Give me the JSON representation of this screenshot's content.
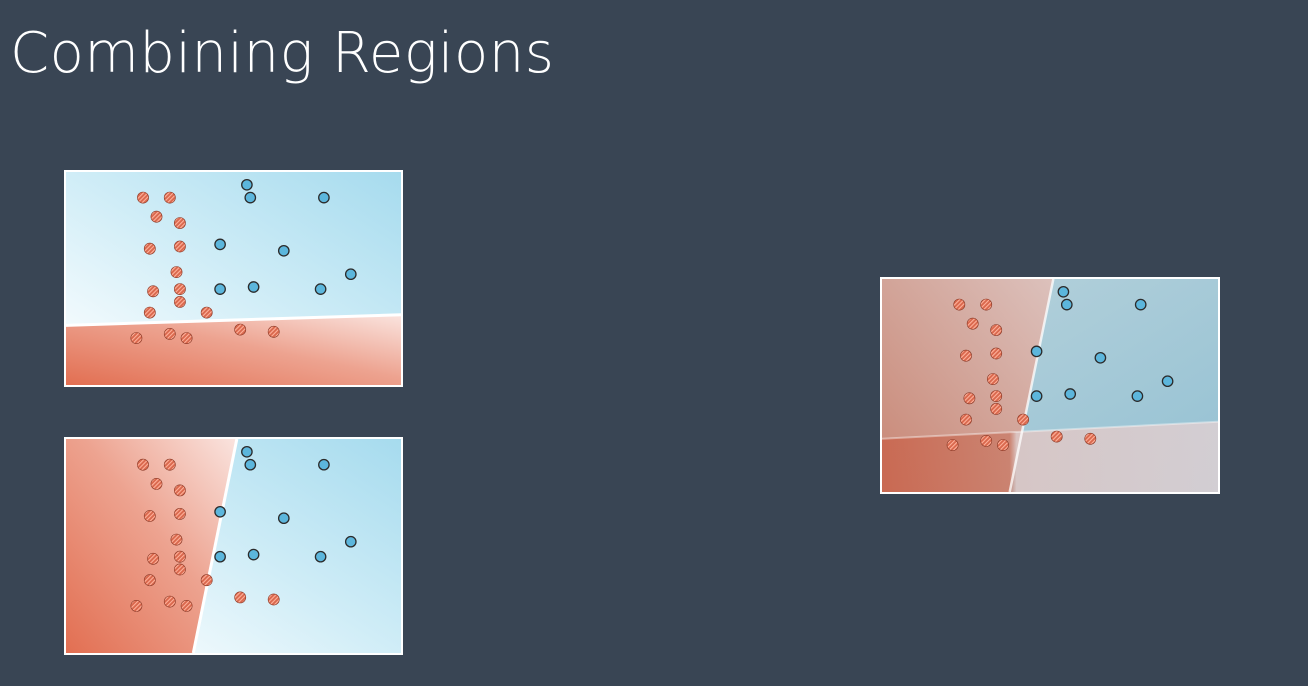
{
  "slide": {
    "title": "Combining Regions"
  },
  "colors": {
    "background": "#394554",
    "title": "#ffffff",
    "red_point": "#d9684d",
    "red_point_stripe": "#ffb19b",
    "blue_point": "#5cb6dc",
    "point_outline": "#2b2b2b",
    "red_region": "#e26f52",
    "blue_region": "#a6dbee",
    "boundary": "#ffffff"
  },
  "points": {
    "red": [
      [
        2.3,
        8.8
      ],
      [
        3.1,
        8.8
      ],
      [
        3.4,
        7.6
      ],
      [
        2.7,
        7.9
      ],
      [
        2.5,
        6.4
      ],
      [
        3.4,
        6.5
      ],
      [
        2.6,
        4.4
      ],
      [
        3.3,
        5.3
      ],
      [
        3.4,
        4.5
      ],
      [
        2.5,
        3.4
      ],
      [
        3.4,
        3.9
      ],
      [
        3.6,
        2.2
      ],
      [
        2.1,
        2.2
      ],
      [
        3.1,
        2.4
      ],
      [
        5.2,
        2.6
      ],
      [
        4.2,
        3.4
      ],
      [
        6.2,
        2.5
      ]
    ],
    "blue": [
      [
        5.4,
        9.4
      ],
      [
        5.5,
        8.8
      ],
      [
        7.7,
        8.8
      ],
      [
        4.6,
        6.6
      ],
      [
        6.5,
        6.3
      ],
      [
        8.5,
        5.2
      ],
      [
        4.6,
        4.5
      ],
      [
        5.6,
        4.6
      ],
      [
        7.6,
        4.5
      ]
    ]
  },
  "panels": [
    {
      "id": "top",
      "description_name": "horizontal-split",
      "boundary_left_y": 2.8,
      "boundary_right_y": 3.3,
      "below_region": "red",
      "above_region": "blue"
    },
    {
      "id": "bottom",
      "description_name": "vertical-split",
      "boundary_bottom_x": 3.8,
      "boundary_top_x": 5.1,
      "left_region": "red",
      "right_region": "blue"
    },
    {
      "id": "result",
      "description_name": "combined",
      "horizontal_boundary_left_y": 2.5,
      "horizontal_boundary_right_y": 3.3,
      "vertical_boundary_bottom_x": 3.8,
      "vertical_boundary_top_x": 5.1
    }
  ]
}
